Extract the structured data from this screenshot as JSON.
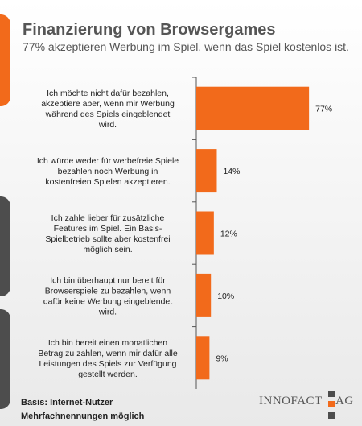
{
  "header": {
    "title": "Finanzierung von Browsergames",
    "subtitle": "77% akzeptieren Werbung im Spiel, wenn das Spiel kostenlos ist."
  },
  "chart_data": {
    "type": "bar",
    "orientation": "horizontal",
    "categories": [
      [
        "Ich möchte nicht dafür bezahlen,",
        "akzeptiere aber, wenn mir Werbung",
        "während des Spiels eingeblendet",
        "wird."
      ],
      [
        "Ich würde weder für werbefreie Spiele",
        "bezahlen noch Werbung in",
        "kostenfreien Spielen akzeptieren."
      ],
      [
        "Ich zahle lieber für zusätzliche",
        "Features im Spiel. Ein Basis-",
        "Spielbetrieb sollte aber kostenfrei",
        "möglich sein."
      ],
      [
        "Ich bin überhaupt nur bereit für",
        "Browserspiele zu bezahlen, wenn",
        "dafür keine Werbung eingeblendet",
        "wird."
      ],
      [
        "Ich bin bereit einen monatlichen",
        "Betrag zu zahlen, wenn mir dafür alle",
        "Leistungen des Spiels zur Verfügung",
        "gestellt werden."
      ]
    ],
    "values": [
      77,
      14,
      12,
      10,
      9
    ],
    "value_labels": [
      "77%",
      "14%",
      "12%",
      "10%",
      "9%"
    ],
    "xlim": [
      0,
      100
    ],
    "bar_color": "#f26a1b",
    "grid": false,
    "legend": false
  },
  "footer": {
    "basis": "Basis: Internet-Nutzer",
    "note": "Mehrfachnennungen möglich"
  },
  "logo": {
    "text_left": "INNOFACT",
    "text_right": "AG",
    "colors": [
      "#f26a1b",
      "#4d4d4d"
    ]
  },
  "theme": {
    "accent": "#f26a1b",
    "dark": "#4d4d4d"
  }
}
